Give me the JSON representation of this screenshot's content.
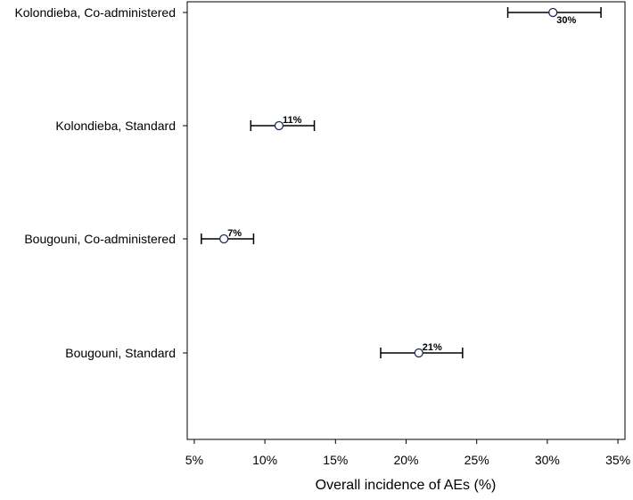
{
  "chart_data": {
    "type": "scatter",
    "subtype": "forest-plot-with-error-bars",
    "title": "",
    "xlabel": "Overall incidence of AEs (%)",
    "ylabel": "",
    "xlim": [
      4.5,
      35.5
    ],
    "x_ticks": [
      5,
      10,
      15,
      20,
      25,
      30,
      35
    ],
    "x_tick_labels": [
      "5%",
      "10%",
      "15%",
      "20%",
      "25%",
      "30%",
      "35%"
    ],
    "categories": [
      "Kolondieba, Co-administered",
      "Kolondieba, Standard",
      "Bougouni, Co-administered",
      "Bougouni, Standard"
    ],
    "points": [
      {
        "category": "Kolondieba, Co-administered",
        "estimate": 30.4,
        "lower": 27.2,
        "upper": 33.8,
        "label": "30%",
        "label_position": "below-right"
      },
      {
        "category": "Kolondieba, Standard",
        "estimate": 11.0,
        "lower": 9.0,
        "upper": 13.5,
        "label": "11%",
        "label_position": "above-right"
      },
      {
        "category": "Bougouni, Co-administered",
        "estimate": 7.1,
        "lower": 5.5,
        "upper": 9.2,
        "label": "7%",
        "label_position": "above-right"
      },
      {
        "category": "Bougouni, Standard",
        "estimate": 20.9,
        "lower": 18.2,
        "upper": 24.0,
        "label": "21%",
        "label_position": "above-right"
      }
    ],
    "grid": false,
    "legend": "none",
    "marker": "hollow-circle",
    "colors": {
      "marker": "#1f2a5a",
      "error_bar": "#000000",
      "axis": "#000000"
    }
  }
}
